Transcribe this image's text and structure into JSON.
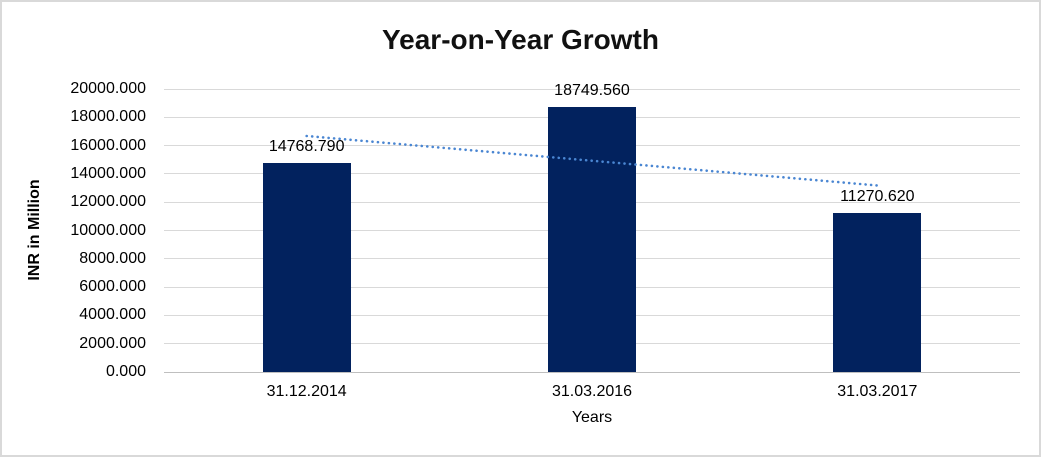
{
  "frame": {
    "background": "#ffffff",
    "border_color": "#d9d9d9"
  },
  "chart_data": {
    "type": "bar",
    "title": "Year-on-Year Growth",
    "categories": [
      "31.12.2014",
      "31.03.2016",
      "31.03.2017"
    ],
    "values": [
      14768.79,
      18749.56,
      11270.62
    ],
    "data_labels": [
      "14768.790",
      "18749.560",
      "11270.620"
    ],
    "xlabel": "Years",
    "ylabel": "INR in Million",
    "ylim": [
      0,
      20000
    ],
    "ytick_interval": 2000,
    "ytick_labels": [
      "20000.000",
      "18000.000",
      "16000.000",
      "14000.000",
      "12000.000",
      "10000.000",
      "8000.000",
      "6000.000",
      "4000.000",
      "2000.000",
      "0.000"
    ],
    "grid": true,
    "legend": "none",
    "bar_color": "#02225e",
    "gridline_color": "#d9d9d9",
    "axis_line_color": "#bfbfbf",
    "trendline": {
      "type": "linear",
      "style": "dotted",
      "color": "#4a86d2",
      "start_value": 16678.7,
      "end_value": 13180.6
    }
  }
}
